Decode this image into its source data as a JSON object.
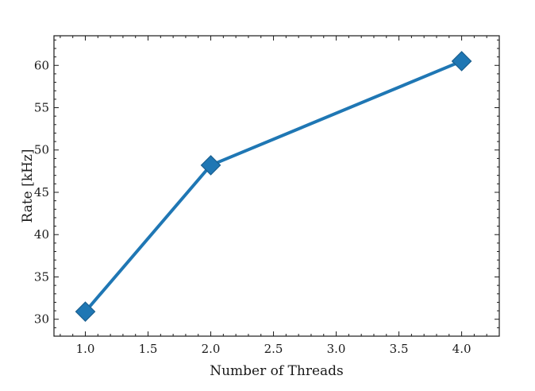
{
  "chart_data": {
    "type": "line",
    "title": "",
    "xlabel": "Number of Threads",
    "ylabel": "Rate [kHz]",
    "xlim": [
      0.75,
      4.3
    ],
    "ylim": [
      28.0,
      63.5
    ],
    "x_ticks": [
      1.0,
      1.5,
      2.0,
      2.5,
      3.0,
      3.5,
      4.0
    ],
    "x_tick_labels": [
      "1.0",
      "1.5",
      "2.0",
      "2.5",
      "3.0",
      "3.5",
      "4.0"
    ],
    "y_ticks": [
      30,
      35,
      40,
      45,
      50,
      55,
      60
    ],
    "y_tick_labels": [
      "30",
      "35",
      "40",
      "45",
      "50",
      "55",
      "60"
    ],
    "grid": false,
    "series": [
      {
        "color": "#1f77b4",
        "marker": "diamond",
        "x": [
          1.0,
          2.0,
          4.0
        ],
        "y": [
          30.9,
          48.2,
          60.5
        ]
      }
    ]
  }
}
